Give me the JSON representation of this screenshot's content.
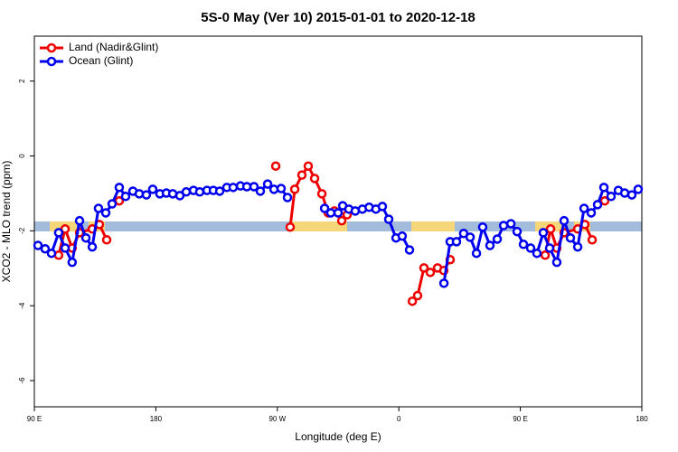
{
  "chart_data": {
    "type": "line",
    "title": "5S-0 May (Ver 10)   2015-01-01 to 2020-12-18",
    "xlabel": "Longitude (deg E)",
    "ylabel": "XCO2 - MLO trend (ppm)",
    "xlim": [
      90,
      540
    ],
    "ylim": [
      -6.7,
      3.2
    ],
    "xticks": [
      {
        "value": 90,
        "label": "90 E"
      },
      180,
      {
        "value": 270,
        "label": "90 W"
      },
      {
        "value": 360,
        "label": "0"
      },
      {
        "value": 450,
        "label": "90 E"
      },
      {
        "value": 540,
        "label": "180"
      }
    ],
    "yticks": [
      2,
      0,
      -2,
      -4,
      -6
    ],
    "legend": "top-left",
    "series": [
      {
        "name": "Land (Nadir&Glint)",
        "color": "#ee0000",
        "x": [
          108,
          112.8,
          118,
          123.5,
          132.9,
          138.2,
          143.6,
          null,
          152.9,
          null,
          268.8,
          null,
          279.5,
          282.9,
          288.2,
          292.9,
          297.6,
          303,
          307.7,
          312.3,
          317.7,
          321.7,
          null,
          370,
          373.9,
          378.6,
          383.3,
          388.7,
          393.3,
          398,
          null,
          468.4,
          472.4,
          477,
          482.4,
          492.5,
          497.8,
          503.2,
          null,
          512.5
        ],
        "values": [
          -2.65,
          -1.95,
          -2.46,
          -2.05,
          -1.95,
          -1.83,
          -2.24,
          null,
          -1.2,
          null,
          -0.27,
          null,
          -1.9,
          -0.89,
          -0.51,
          -0.27,
          -0.6,
          -1.01,
          -1.52,
          -1.47,
          -1.73,
          -1.57,
          null,
          -3.88,
          -3.73,
          -2.99,
          -3.11,
          -2.99,
          -3.06,
          -2.77,
          null,
          -2.65,
          -1.95,
          -2.46,
          -2.05,
          -1.95,
          -1.83,
          -2.24,
          null,
          -1.2
        ]
      },
      {
        "name": "Ocean (Glint)",
        "color": "#0000ee",
        "x": [
          92.7,
          98,
          102.7,
          108,
          112.8,
          118,
          123.5,
          128.2,
          132.9,
          137.5,
          142.9,
          147.6,
          152.9,
          157.6,
          163,
          167.7,
          173,
          177.7,
          183,
          187.8,
          192.5,
          197.8,
          202.5,
          207.9,
          212.5,
          217.9,
          222.6,
          227.3,
          232.6,
          237.3,
          242.7,
          247.4,
          252.7,
          257.4,
          262.8,
          267.5,
          272.8,
          277.5,
          null,
          305,
          309.6,
          315,
          318.4,
          323,
          327.7,
          333,
          338,
          343,
          347.8,
          352.5,
          357.9,
          362.5,
          367.9,
          null,
          393.4,
          398,
          402.7,
          408,
          412.8,
          417.5,
          422.1,
          427.5,
          432.9,
          437.6,
          443,
          447.6,
          452.3,
          457.6,
          462.3,
          467,
          471.7,
          477,
          482.4,
          487.1,
          492.5,
          497.2,
          502.5,
          507.2,
          511.9,
          517.2,
          522.6,
          527.3,
          532.6,
          537.3
        ],
        "values": [
          -2.39,
          -2.48,
          -2.6,
          -2.05,
          -2.46,
          -2.84,
          -1.73,
          -2.19,
          -2.43,
          -1.4,
          -1.52,
          -1.28,
          -0.84,
          -1.08,
          -0.94,
          -1.01,
          -1.04,
          -0.89,
          -1.01,
          -0.99,
          -1.01,
          -1.06,
          -0.96,
          -0.92,
          -0.96,
          -0.92,
          -0.92,
          -0.94,
          -0.84,
          -0.84,
          -0.8,
          -0.82,
          -0.82,
          -0.94,
          -0.75,
          -0.89,
          -0.87,
          -1.11,
          null,
          -1.4,
          -1.52,
          -1.52,
          -1.33,
          -1.42,
          -1.47,
          -1.42,
          -1.37,
          -1.42,
          -1.35,
          -1.69,
          -2.19,
          -2.14,
          -2.51,
          null,
          -3.4,
          -2.29,
          -2.29,
          -2.07,
          -2.17,
          -2.6,
          -1.9,
          -2.39,
          -2.22,
          -1.86,
          -1.81,
          -2.02,
          -2.36,
          -2.46,
          -2.6,
          -2.05,
          -2.46,
          -2.84,
          -1.73,
          -2.19,
          -2.43,
          -1.4,
          -1.52,
          -1.3,
          -0.84,
          -1.08,
          -0.92,
          -0.99,
          -1.04,
          -0.89
        ]
      }
    ]
  }
}
